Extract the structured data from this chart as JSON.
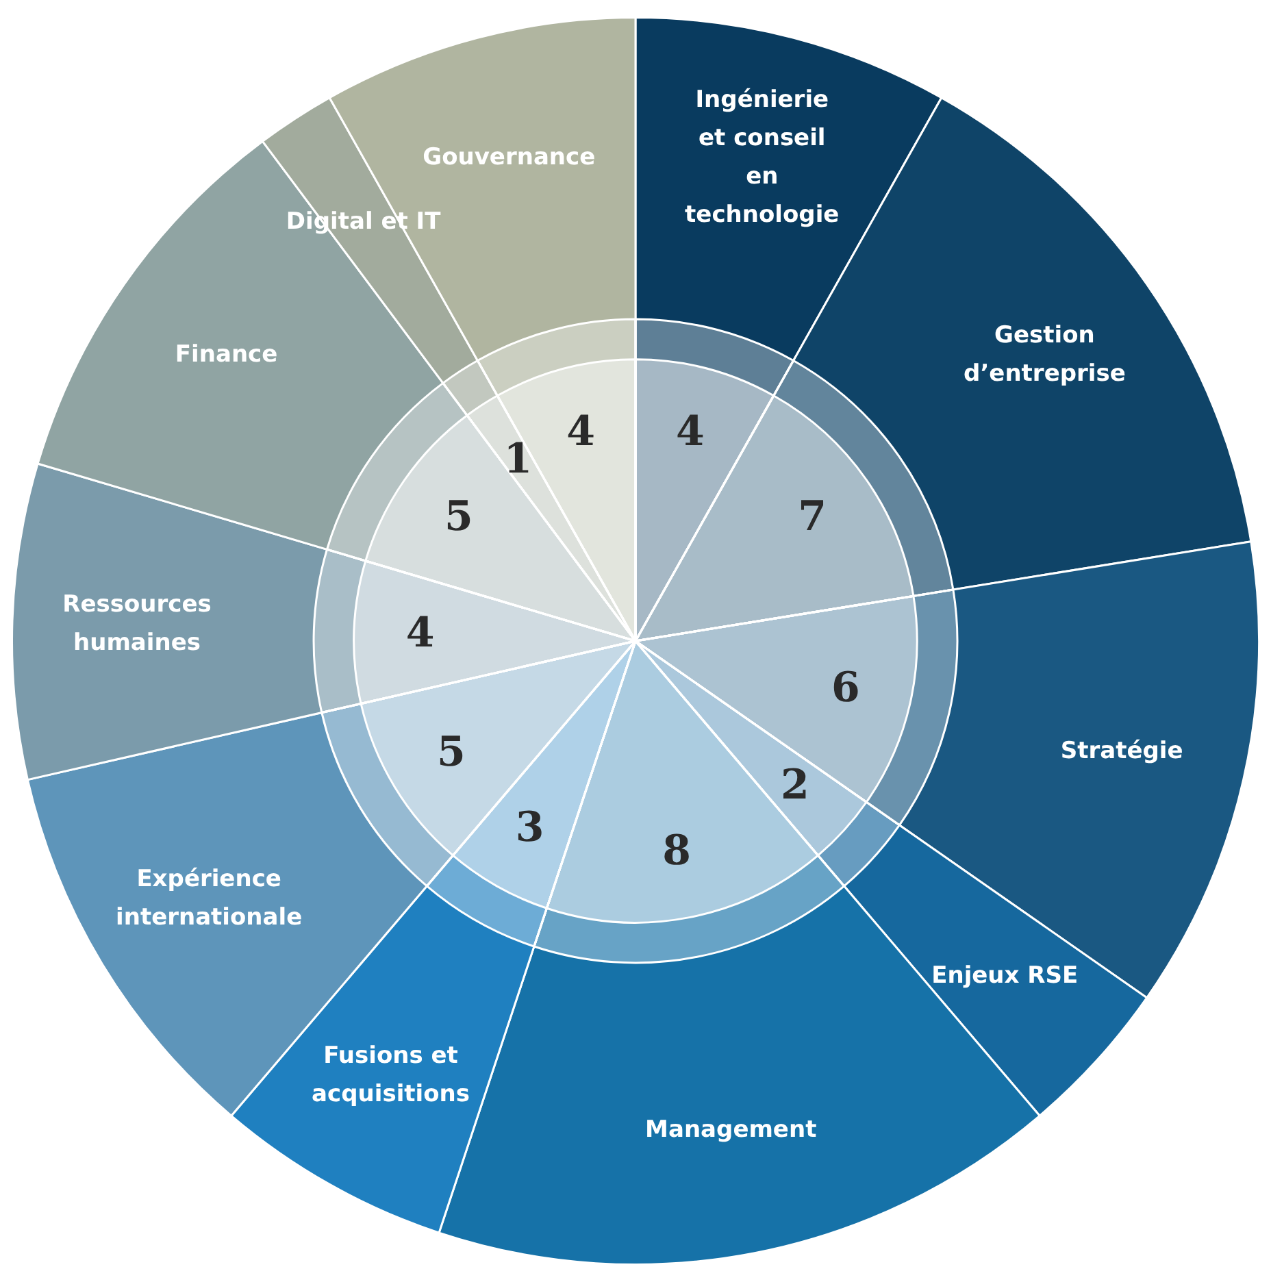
{
  "chart_data": {
    "type": "pie",
    "categories": [
      "Ingénierie et conseil en technologie",
      "Gestion d’entreprise",
      "Stratégie",
      "Enjeux RSE",
      "Management",
      "Fusions et acquisitions",
      "Expérience internationale",
      "Ressources humaines",
      "Finance",
      "Digital et IT",
      "Gouvernance"
    ],
    "values": [
      4,
      7,
      6,
      2,
      8,
      3,
      5,
      4,
      5,
      1,
      4
    ],
    "colors": [
      "#093b5f",
      "#0f4468",
      "#1a5882",
      "#16689e",
      "#1672a8",
      "#1f80c0",
      "#5e95ba",
      "#7b9bab",
      "#90a4a3",
      "#a2ab9d",
      "#b0b5a0"
    ],
    "data_labels": true,
    "legend": false
  }
}
